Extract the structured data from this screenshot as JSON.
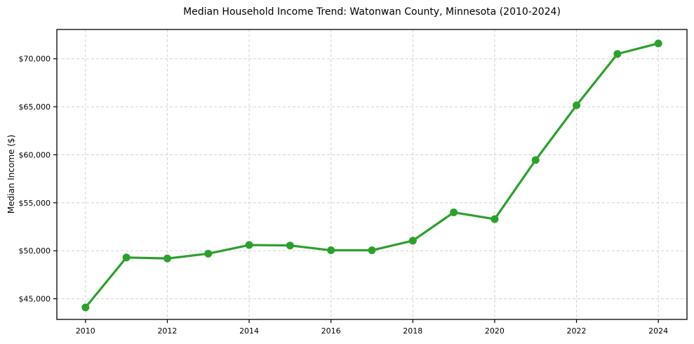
{
  "chart_data": {
    "type": "line",
    "title": "Median Household Income Trend: Watonwan County, Minnesota (2010-2024)",
    "xlabel": "",
    "ylabel": "Median Income ($)",
    "x": [
      2010,
      2011,
      2012,
      2013,
      2014,
      2015,
      2016,
      2017,
      2018,
      2019,
      2020,
      2021,
      2022,
      2023,
      2024
    ],
    "values": [
      44100,
      49300,
      49200,
      49700,
      50600,
      50550,
      50050,
      50050,
      51050,
      54000,
      53300,
      59450,
      65150,
      70500,
      71600
    ],
    "xlim": [
      2009.3,
      2024.7
    ],
    "ylim": [
      42850,
      73050
    ],
    "xticks": [
      2010,
      2012,
      2014,
      2016,
      2018,
      2020,
      2022,
      2024
    ],
    "xtick_labels": [
      "2010",
      "2012",
      "2014",
      "2016",
      "2018",
      "2020",
      "2022",
      "2024"
    ],
    "yticks": [
      45000,
      50000,
      55000,
      60000,
      65000,
      70000
    ],
    "ytick_labels": [
      "$45,000",
      "$50,000",
      "$55,000",
      "$60,000",
      "$65,000",
      "$70,000"
    ],
    "grid": true,
    "legend": "none",
    "line_color": "#2ca02c",
    "marker": "circle",
    "grid_color": "#d3d3d3",
    "axis_color": "#000000",
    "background_color": "#ffffff"
  }
}
